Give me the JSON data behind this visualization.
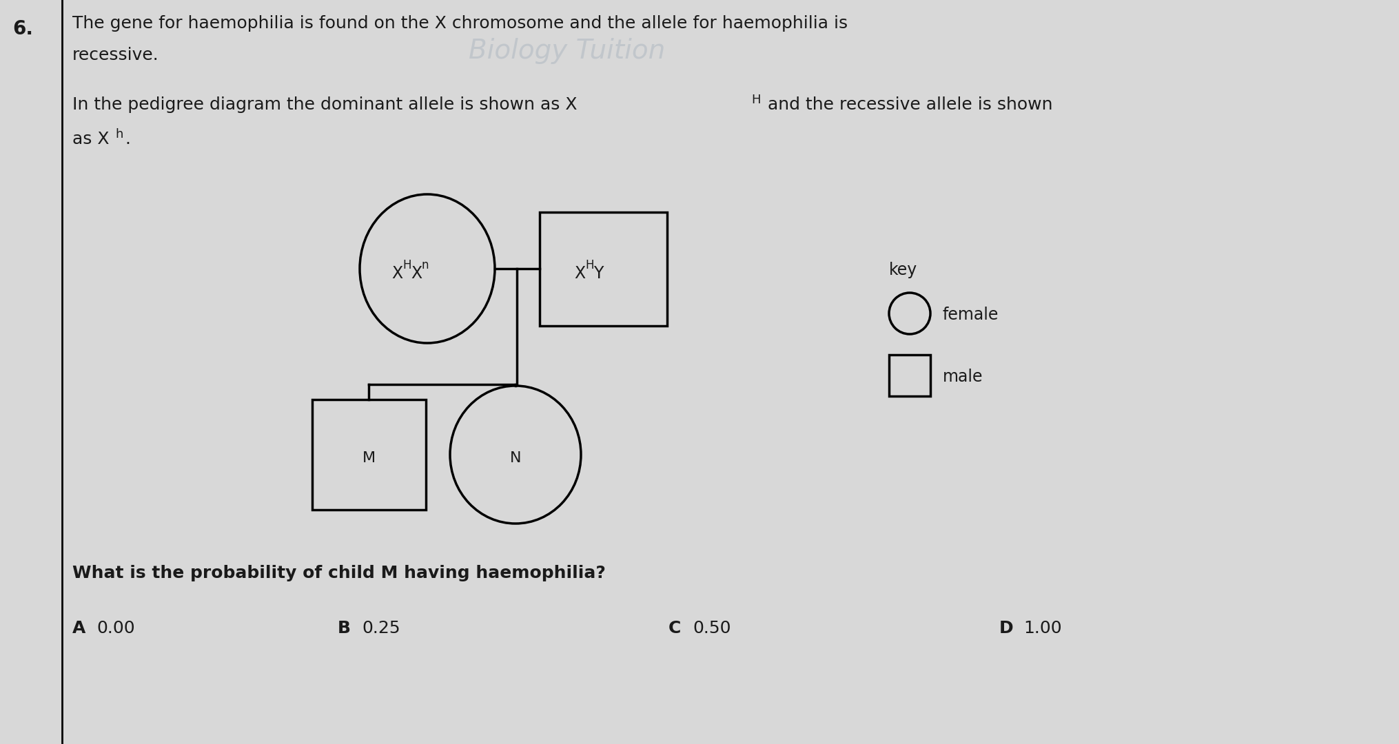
{
  "background_color": "#d8d8d8",
  "fg_color": "#1a1a1a",
  "question_number": "6.",
  "text_line1": "The gene for haemophilia is found on the X chromosome and the allele for haemophilia is",
  "text_line2": "recessive.",
  "text_line3_pre": "In the pedigree diagram the dominant allele is shown as X",
  "text_line3_sup": "H",
  "text_line3_post": " and the recessive allele is shown",
  "text_line4_pre": "as X",
  "text_line4_sup": "h",
  "text_line4_post": ".",
  "watermark": "Biology Tuition",
  "question2": "What is the probability of child M having haemophilia?",
  "answer_labels": [
    "A",
    "B",
    "C",
    "D"
  ],
  "answer_values": [
    "0.00",
    "0.25",
    "0.50",
    "1.00"
  ],
  "key_title": "key",
  "key_female": "female",
  "key_male": "male",
  "font_size_main": 18,
  "font_size_super": 13,
  "font_size_qnum": 20,
  "font_size_label": 17,
  "font_size_shape_label": 16,
  "font_size_key": 17,
  "font_size_watermark": 28
}
